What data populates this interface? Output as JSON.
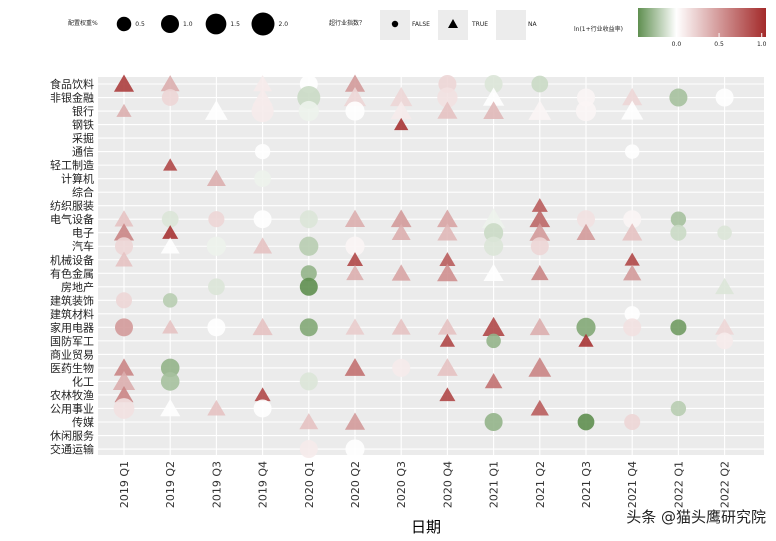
{
  "watermark": "头条 @猫头鹰研究院",
  "chart_data": {
    "type": "scatter",
    "xlabel": "日期",
    "ylabel": "",
    "title": "",
    "grid": true,
    "legend_position": "top",
    "x_categories": [
      "2019 Q1",
      "2019 Q2",
      "2019 Q3",
      "2019 Q4",
      "2020 Q1",
      "2020 Q2",
      "2020 Q3",
      "2020 Q4",
      "2021 Q1",
      "2021 Q2",
      "2021 Q3",
      "2021 Q4",
      "2022 Q1",
      "2022 Q2"
    ],
    "y_categories": [
      "食品饮料",
      "非银金融",
      "银行",
      "钢铁",
      "采掘",
      "通信",
      "轻工制造",
      "计算机",
      "综合",
      "纺织服装",
      "电气设备",
      "电子",
      "汽车",
      "机械设备",
      "有色金属",
      "房地产",
      "建筑装饰",
      "建筑材料",
      "家用电器",
      "国防军工",
      "商业贸易",
      "医药生物",
      "化工",
      "农林牧渔",
      "公用事业",
      "传媒",
      "休闲服务",
      "交通运输"
    ],
    "legend_size": {
      "title": "配置权重%",
      "breaks": [
        "0.5",
        "1.0",
        "1.5",
        "2.0"
      ],
      "values": [
        0.5,
        1.0,
        1.5,
        2.0
      ]
    },
    "legend_shape": {
      "title": "超行业指数？",
      "labels": [
        "FALSE",
        "TRUE",
        "NA"
      ]
    },
    "legend_color": {
      "title": "ln(1+行业收益率)",
      "ticks": [
        "0.0",
        "0.5",
        "1.0"
      ],
      "values": [
        0,
        0.5,
        1.0
      ],
      "low": "#5f8f50",
      "mid": "#ffffff",
      "high": "#a32a2a",
      "domain": [
        -0.45,
        1.05
      ]
    },
    "points": [
      {
        "x": "2019 Q1",
        "y": "食品饮料",
        "w": 1.2,
        "s": "TRUE",
        "c": 0.95
      },
      {
        "x": "2019 Q1",
        "y": "银行",
        "w": 0.5,
        "s": "TRUE",
        "c": 0.4
      },
      {
        "x": "2019 Q1",
        "y": "电气设备",
        "w": 1.0,
        "s": "TRUE",
        "c": 0.3
      },
      {
        "x": "2019 Q1",
        "y": "电子",
        "w": 1.2,
        "s": "TRUE",
        "c": 0.6
      },
      {
        "x": "2019 Q1",
        "y": "汽车",
        "w": 1.0,
        "s": "FALSE",
        "c": 0.2
      },
      {
        "x": "2019 Q1",
        "y": "机械设备",
        "w": 0.8,
        "s": "TRUE",
        "c": 0.3
      },
      {
        "x": "2019 Q1",
        "y": "建筑装饰",
        "w": 0.7,
        "s": "FALSE",
        "c": 0.2
      },
      {
        "x": "2019 Q1",
        "y": "家用电器",
        "w": 1.0,
        "s": "FALSE",
        "c": 0.5
      },
      {
        "x": "2019 Q1",
        "y": "医药生物",
        "w": 1.2,
        "s": "TRUE",
        "c": 0.6
      },
      {
        "x": "2019 Q1",
        "y": "化工",
        "w": 1.6,
        "s": "TRUE",
        "c": 0.4
      },
      {
        "x": "2019 Q1",
        "y": "农林牧渔",
        "w": 1.0,
        "s": "TRUE",
        "c": 0.6
      },
      {
        "x": "2019 Q1",
        "y": "公用事业",
        "w": 1.5,
        "s": "FALSE",
        "c": 0.15
      },
      {
        "x": "2019 Q2",
        "y": "食品饮料",
        "w": 1.0,
        "s": "TRUE",
        "c": 0.4
      },
      {
        "x": "2019 Q2",
        "y": "非银金融",
        "w": 0.8,
        "s": "FALSE",
        "c": 0.2
      },
      {
        "x": "2019 Q2",
        "y": "轻工制造",
        "w": 0.4,
        "s": "TRUE",
        "c": 0.9
      },
      {
        "x": "2019 Q2",
        "y": "电气设备",
        "w": 0.8,
        "s": "FALSE",
        "c": -0.1
      },
      {
        "x": "2019 Q2",
        "y": "电子",
        "w": 0.6,
        "s": "TRUE",
        "c": 1.0
      },
      {
        "x": "2019 Q2",
        "y": "汽车",
        "w": 1.0,
        "s": "TRUE",
        "c": 0.0
      },
      {
        "x": "2019 Q2",
        "y": "建筑装饰",
        "w": 0.5,
        "s": "FALSE",
        "c": -0.2
      },
      {
        "x": "2019 Q2",
        "y": "家用电器",
        "w": 0.6,
        "s": "TRUE",
        "c": 0.3
      },
      {
        "x": "2019 Q2",
        "y": "医药生物",
        "w": 1.1,
        "s": "FALSE",
        "c": -0.3
      },
      {
        "x": "2019 Q2",
        "y": "化工",
        "w": 1.1,
        "s": "FALSE",
        "c": -0.25
      },
      {
        "x": "2019 Q2",
        "y": "公用事业",
        "w": 1.2,
        "s": "TRUE",
        "c": 0.0
      },
      {
        "x": "2019 Q3",
        "y": "银行",
        "w": 1.7,
        "s": "TRUE",
        "c": 0.0
      },
      {
        "x": "2019 Q3",
        "y": "计算机",
        "w": 1.0,
        "s": "TRUE",
        "c": 0.4
      },
      {
        "x": "2019 Q3",
        "y": "电气设备",
        "w": 0.7,
        "s": "FALSE",
        "c": 0.2
      },
      {
        "x": "2019 Q3",
        "y": "汽车",
        "w": 1.2,
        "s": "FALSE",
        "c": -0.05
      },
      {
        "x": "2019 Q3",
        "y": "房地产",
        "w": 0.8,
        "s": "FALSE",
        "c": -0.1
      },
      {
        "x": "2019 Q3",
        "y": "家用电器",
        "w": 1.0,
        "s": "FALSE",
        "c": 0.0
      },
      {
        "x": "2019 Q3",
        "y": "公用事业",
        "w": 0.9,
        "s": "TRUE",
        "c": 0.3
      },
      {
        "x": "2019 Q4",
        "y": "食品饮料",
        "w": 1.0,
        "s": "TRUE",
        "c": 0.1
      },
      {
        "x": "2019 Q4",
        "y": "非银金融",
        "w": 1.2,
        "s": "TRUE",
        "c": 0.1
      },
      {
        "x": "2019 Q4",
        "y": "银行",
        "w": 1.8,
        "s": "FALSE",
        "c": 0.1
      },
      {
        "x": "2019 Q4",
        "y": "通信",
        "w": 0.6,
        "s": "FALSE",
        "c": 0.0
      },
      {
        "x": "2019 Q4",
        "y": "计算机",
        "w": 0.8,
        "s": "FALSE",
        "c": -0.05
      },
      {
        "x": "2019 Q4",
        "y": "电气设备",
        "w": 1.0,
        "s": "FALSE",
        "c": 0.0
      },
      {
        "x": "2019 Q4",
        "y": "汽车",
        "w": 1.0,
        "s": "TRUE",
        "c": 0.3
      },
      {
        "x": "2019 Q4",
        "y": "家用电器",
        "w": 1.2,
        "s": "TRUE",
        "c": 0.3
      },
      {
        "x": "2019 Q4",
        "y": "农林牧渔",
        "w": 0.6,
        "s": "TRUE",
        "c": 0.9
      },
      {
        "x": "2019 Q4",
        "y": "公用事业",
        "w": 1.0,
        "s": "FALSE",
        "c": 0.0
      },
      {
        "x": "2020 Q1",
        "y": "食品饮料",
        "w": 1.0,
        "s": "FALSE",
        "c": 0.0
      },
      {
        "x": "2020 Q1",
        "y": "非银金融",
        "w": 2.0,
        "s": "FALSE",
        "c": -0.15
      },
      {
        "x": "2020 Q1",
        "y": "银行",
        "w": 1.4,
        "s": "FALSE",
        "c": -0.05
      },
      {
        "x": "2020 Q1",
        "y": "电气设备",
        "w": 1.0,
        "s": "FALSE",
        "c": -0.1
      },
      {
        "x": "2020 Q1",
        "y": "汽车",
        "w": 1.2,
        "s": "FALSE",
        "c": -0.2
      },
      {
        "x": "2020 Q1",
        "y": "有色金属",
        "w": 0.7,
        "s": "FALSE",
        "c": -0.3
      },
      {
        "x": "2020 Q1",
        "y": "房地产",
        "w": 1.0,
        "s": "FALSE",
        "c": -0.45
      },
      {
        "x": "2020 Q1",
        "y": "家用电器",
        "w": 1.0,
        "s": "FALSE",
        "c": -0.35
      },
      {
        "x": "2020 Q1",
        "y": "化工",
        "w": 1.0,
        "s": "FALSE",
        "c": -0.1
      },
      {
        "x": "2020 Q1",
        "y": "传媒",
        "w": 1.0,
        "s": "TRUE",
        "c": 0.3
      },
      {
        "x": "2020 Q1",
        "y": "交通运输",
        "w": 1.0,
        "s": "FALSE",
        "c": 0.1
      },
      {
        "x": "2020 Q2",
        "y": "食品饮料",
        "w": 1.2,
        "s": "TRUE",
        "c": 0.5
      },
      {
        "x": "2020 Q2",
        "y": "非银金融",
        "w": 1.6,
        "s": "TRUE",
        "c": 0.2
      },
      {
        "x": "2020 Q2",
        "y": "银行",
        "w": 1.2,
        "s": "FALSE",
        "c": 0.0
      },
      {
        "x": "2020 Q2",
        "y": "电气设备",
        "w": 1.2,
        "s": "TRUE",
        "c": 0.4
      },
      {
        "x": "2020 Q2",
        "y": "汽车",
        "w": 1.2,
        "s": "FALSE",
        "c": 0.05
      },
      {
        "x": "2020 Q2",
        "y": "机械设备",
        "w": 0.6,
        "s": "TRUE",
        "c": 0.9
      },
      {
        "x": "2020 Q2",
        "y": "有色金属",
        "w": 0.8,
        "s": "TRUE",
        "c": 0.4
      },
      {
        "x": "2020 Q2",
        "y": "家用电器",
        "w": 1.0,
        "s": "TRUE",
        "c": 0.25
      },
      {
        "x": "2020 Q2",
        "y": "医药生物",
        "w": 1.3,
        "s": "TRUE",
        "c": 0.7
      },
      {
        "x": "2020 Q2",
        "y": "传媒",
        "w": 1.2,
        "s": "TRUE",
        "c": 0.5
      },
      {
        "x": "2020 Q2",
        "y": "交通运输",
        "w": 1.2,
        "s": "FALSE",
        "c": 0.0
      },
      {
        "x": "2020 Q3",
        "y": "非银金融",
        "w": 1.6,
        "s": "TRUE",
        "c": 0.2
      },
      {
        "x": "2020 Q3",
        "y": "银行",
        "w": 1.4,
        "s": "TRUE",
        "c": 0.1
      },
      {
        "x": "2020 Q3",
        "y": "钢铁",
        "w": 0.4,
        "s": "TRUE",
        "c": 1.0
      },
      {
        "x": "2020 Q3",
        "y": "电气设备",
        "w": 1.3,
        "s": "TRUE",
        "c": 0.5
      },
      {
        "x": "2020 Q3",
        "y": "电子",
        "w": 1.0,
        "s": "TRUE",
        "c": 0.4
      },
      {
        "x": "2020 Q3",
        "y": "有色金属",
        "w": 1.0,
        "s": "TRUE",
        "c": 0.45
      },
      {
        "x": "2020 Q3",
        "y": "家用电器",
        "w": 1.0,
        "s": "TRUE",
        "c": 0.3
      },
      {
        "x": "2020 Q3",
        "y": "医药生物",
        "w": 1.0,
        "s": "FALSE",
        "c": 0.1
      },
      {
        "x": "2020 Q4",
        "y": "食品饮料",
        "w": 1.0,
        "s": "FALSE",
        "c": 0.2
      },
      {
        "x": "2020 Q4",
        "y": "非银金融",
        "w": 1.4,
        "s": "FALSE",
        "c": 0.15
      },
      {
        "x": "2020 Q4",
        "y": "银行",
        "w": 1.2,
        "s": "TRUE",
        "c": 0.3
      },
      {
        "x": "2020 Q4",
        "y": "电气设备",
        "w": 1.3,
        "s": "TRUE",
        "c": 0.45
      },
      {
        "x": "2020 Q4",
        "y": "电子",
        "w": 1.2,
        "s": "TRUE",
        "c": 0.35
      },
      {
        "x": "2020 Q4",
        "y": "机械设备",
        "w": 0.6,
        "s": "TRUE",
        "c": 0.8
      },
      {
        "x": "2020 Q4",
        "y": "有色金属",
        "w": 1.3,
        "s": "TRUE",
        "c": 0.55
      },
      {
        "x": "2020 Q4",
        "y": "家用电器",
        "w": 1.0,
        "s": "TRUE",
        "c": 0.3
      },
      {
        "x": "2020 Q4",
        "y": "国防军工",
        "w": 0.5,
        "s": "TRUE",
        "c": 0.9
      },
      {
        "x": "2020 Q4",
        "y": "医药生物",
        "w": 1.3,
        "s": "TRUE",
        "c": 0.3
      },
      {
        "x": "2020 Q4",
        "y": "农林牧渔",
        "w": 0.6,
        "s": "TRUE",
        "c": 0.9
      },
      {
        "x": "2021 Q1",
        "y": "食品饮料",
        "w": 1.0,
        "s": "FALSE",
        "c": -0.1
      },
      {
        "x": "2021 Q1",
        "y": "非银金融",
        "w": 1.4,
        "s": "TRUE",
        "c": 0.0
      },
      {
        "x": "2021 Q1",
        "y": "银行",
        "w": 1.3,
        "s": "TRUE",
        "c": 0.35
      },
      {
        "x": "2021 Q1",
        "y": "电气设备",
        "w": 1.8,
        "s": "TRUE",
        "c": -0.05
      },
      {
        "x": "2021 Q1",
        "y": "电子",
        "w": 1.2,
        "s": "FALSE",
        "c": -0.15
      },
      {
        "x": "2021 Q1",
        "y": "汽车",
        "w": 1.2,
        "s": "FALSE",
        "c": -0.1
      },
      {
        "x": "2021 Q1",
        "y": "有色金属",
        "w": 1.2,
        "s": "TRUE",
        "c": 0.0
      },
      {
        "x": "2021 Q1",
        "y": "家用电器",
        "w": 1.6,
        "s": "TRUE",
        "c": 0.9
      },
      {
        "x": "2021 Q1",
        "y": "国防军工",
        "w": 0.5,
        "s": "FALSE",
        "c": -0.3
      },
      {
        "x": "2021 Q1",
        "y": "化工",
        "w": 0.8,
        "s": "TRUE",
        "c": 0.7
      },
      {
        "x": "2021 Q1",
        "y": "传媒",
        "w": 1.0,
        "s": "FALSE",
        "c": -0.3
      },
      {
        "x": "2022 Q1",
        "y": "非银金融",
        "w": 1.0,
        "s": "FALSE",
        "c": -0.25
      },
      {
        "x": "2021 Q2",
        "y": "食品饮料",
        "w": 0.8,
        "s": "FALSE",
        "c": -0.15
      },
      {
        "x": "2021 Q2",
        "y": "银行",
        "w": 1.7,
        "s": "TRUE",
        "c": 0.05
      },
      {
        "x": "2021 Q2",
        "y": "纺织服装",
        "w": 0.6,
        "s": "TRUE",
        "c": 0.8
      },
      {
        "x": "2021 Q2",
        "y": "电气设备",
        "w": 1.3,
        "s": "TRUE",
        "c": 0.75
      },
      {
        "x": "2021 Q2",
        "y": "电子",
        "w": 1.3,
        "s": "TRUE",
        "c": 0.5
      },
      {
        "x": "2021 Q2",
        "y": "汽车",
        "w": 1.0,
        "s": "FALSE",
        "c": 0.2
      },
      {
        "x": "2021 Q2",
        "y": "有色金属",
        "w": 0.8,
        "s": "TRUE",
        "c": 0.6
      },
      {
        "x": "2021 Q2",
        "y": "家用电器",
        "w": 1.2,
        "s": "TRUE",
        "c": 0.4
      },
      {
        "x": "2021 Q2",
        "y": "医药生物",
        "w": 1.7,
        "s": "TRUE",
        "c": 0.6
      },
      {
        "x": "2021 Q2",
        "y": "公用事业",
        "w": 0.9,
        "s": "TRUE",
        "c": 0.8
      },
      {
        "x": "2021 Q3",
        "y": "非银金融",
        "w": 1.0,
        "s": "FALSE",
        "c": 0.05
      },
      {
        "x": "2021 Q3",
        "y": "银行",
        "w": 1.4,
        "s": "FALSE",
        "c": 0.05
      },
      {
        "x": "2021 Q3",
        "y": "电气设备",
        "w": 1.0,
        "s": "FALSE",
        "c": 0.15
      },
      {
        "x": "2021 Q3",
        "y": "电子",
        "w": 1.0,
        "s": "TRUE",
        "c": 0.5
      },
      {
        "x": "2021 Q3",
        "y": "家用电器",
        "w": 1.2,
        "s": "FALSE",
        "c": -0.35
      },
      {
        "x": "2021 Q3",
        "y": "国防军工",
        "w": 0.5,
        "s": "TRUE",
        "c": 1.0
      },
      {
        "x": "2021 Q3",
        "y": "传媒",
        "w": 0.8,
        "s": "FALSE",
        "c": -0.45
      },
      {
        "x": "2021 Q4",
        "y": "非银金融",
        "w": 1.2,
        "s": "TRUE",
        "c": 0.2
      },
      {
        "x": "2021 Q4",
        "y": "银行",
        "w": 1.6,
        "s": "TRUE",
        "c": 0.0
      },
      {
        "x": "2021 Q4",
        "y": "通信",
        "w": 0.5,
        "s": "FALSE",
        "c": 0.0
      },
      {
        "x": "2021 Q4",
        "y": "电气设备",
        "w": 1.0,
        "s": "FALSE",
        "c": 0.05
      },
      {
        "x": "2021 Q4",
        "y": "电子",
        "w": 1.2,
        "s": "TRUE",
        "c": 0.3
      },
      {
        "x": "2021 Q4",
        "y": "机械设备",
        "w": 0.5,
        "s": "TRUE",
        "c": 0.9
      },
      {
        "x": "2021 Q4",
        "y": "有色金属",
        "w": 0.9,
        "s": "TRUE",
        "c": 0.5
      },
      {
        "x": "2021 Q4",
        "y": "建筑材料",
        "w": 0.6,
        "s": "FALSE",
        "c": 0.0
      },
      {
        "x": "2021 Q4",
        "y": "家用电器",
        "w": 1.0,
        "s": "FALSE",
        "c": 0.15
      },
      {
        "x": "2021 Q4",
        "y": "传媒",
        "w": 0.7,
        "s": "FALSE",
        "c": 0.2
      },
      {
        "x": "2022 Q1",
        "y": "电气设备",
        "w": 0.6,
        "s": "FALSE",
        "c": -0.25
      },
      {
        "x": "2022 Q1",
        "y": "电子",
        "w": 0.7,
        "s": "FALSE",
        "c": -0.15
      },
      {
        "x": "2022 Q1",
        "y": "家用电器",
        "w": 0.7,
        "s": "FALSE",
        "c": -0.4
      },
      {
        "x": "2022 Q1",
        "y": "公用事业",
        "w": 0.6,
        "s": "FALSE",
        "c": -0.2
      },
      {
        "x": "2022 Q2",
        "y": "非银金融",
        "w": 1.0,
        "s": "FALSE",
        "c": 0.0
      },
      {
        "x": "2022 Q2",
        "y": "电子",
        "w": 0.5,
        "s": "FALSE",
        "c": -0.1
      },
      {
        "x": "2022 Q2",
        "y": "房地产",
        "w": 1.0,
        "s": "TRUE",
        "c": -0.1
      },
      {
        "x": "2022 Q2",
        "y": "家用电器",
        "w": 1.0,
        "s": "TRUE",
        "c": 0.2
      },
      {
        "x": "2022 Q2",
        "y": "国防军工",
        "w": 0.8,
        "s": "FALSE",
        "c": 0.1
      }
    ]
  }
}
